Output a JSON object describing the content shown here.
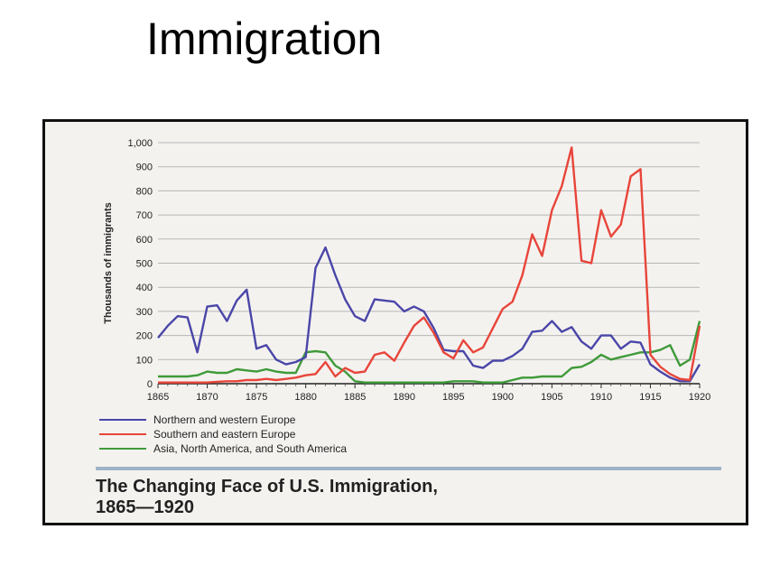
{
  "slide": {
    "title": "Immigration"
  },
  "chart_data": {
    "type": "line",
    "ylabel": "Thousands of immigrants",
    "xlabel": "",
    "ylim": [
      0,
      1000
    ],
    "xlim": [
      1865,
      1920
    ],
    "y_ticks": [
      "0",
      "100",
      "200",
      "300",
      "400",
      "500",
      "600",
      "700",
      "800",
      "900",
      "1,000"
    ],
    "x_ticks": [
      "1865",
      "1870",
      "1875",
      "1880",
      "1885",
      "1890",
      "1895",
      "1900",
      "1905",
      "1910",
      "1915",
      "1920"
    ],
    "grid": true,
    "legend_position": "bottom-left",
    "series": [
      {
        "name": "Northern and western Europe",
        "color": "#4a46a8",
        "x": [
          1865,
          1866,
          1867,
          1868,
          1869,
          1870,
          1871,
          1872,
          1873,
          1874,
          1875,
          1876,
          1877,
          1878,
          1879,
          1880,
          1881,
          1882,
          1883,
          1884,
          1885,
          1886,
          1887,
          1888,
          1889,
          1890,
          1891,
          1892,
          1893,
          1894,
          1895,
          1896,
          1897,
          1898,
          1899,
          1900,
          1901,
          1902,
          1903,
          1904,
          1905,
          1906,
          1907,
          1908,
          1909,
          1910,
          1911,
          1912,
          1913,
          1914,
          1915,
          1916,
          1917,
          1918,
          1919,
          1920
        ],
        "y": [
          190,
          240,
          280,
          275,
          130,
          320,
          325,
          260,
          345,
          390,
          145,
          160,
          100,
          80,
          90,
          110,
          480,
          565,
          450,
          350,
          280,
          260,
          350,
          345,
          340,
          300,
          320,
          300,
          230,
          140,
          135,
          135,
          75,
          65,
          95,
          95,
          115,
          145,
          215,
          220,
          260,
          215,
          235,
          175,
          145,
          200,
          200,
          145,
          175,
          170,
          80,
          50,
          25,
          10,
          10,
          80
        ]
      },
      {
        "name": "Southern and eastern Europe",
        "color": "#e8453a",
        "x": [
          1865,
          1866,
          1867,
          1868,
          1869,
          1870,
          1871,
          1872,
          1873,
          1874,
          1875,
          1876,
          1877,
          1878,
          1879,
          1880,
          1881,
          1882,
          1883,
          1884,
          1885,
          1886,
          1887,
          1888,
          1889,
          1890,
          1891,
          1892,
          1893,
          1894,
          1895,
          1896,
          1897,
          1898,
          1899,
          1900,
          1901,
          1902,
          1903,
          1904,
          1905,
          1906,
          1907,
          1908,
          1909,
          1910,
          1911,
          1912,
          1913,
          1914,
          1915,
          1916,
          1917,
          1918,
          1919,
          1920
        ],
        "y": [
          5,
          5,
          5,
          5,
          5,
          5,
          8,
          10,
          10,
          15,
          15,
          20,
          15,
          20,
          25,
          35,
          40,
          90,
          30,
          65,
          45,
          50,
          120,
          130,
          95,
          170,
          240,
          275,
          210,
          130,
          105,
          180,
          130,
          150,
          230,
          310,
          340,
          450,
          620,
          530,
          720,
          820,
          980,
          510,
          500,
          720,
          610,
          660,
          860,
          890,
          120,
          70,
          40,
          20,
          15,
          240
        ]
      },
      {
        "name": "Asia, North America, and South America",
        "color": "#3f9a3a",
        "x": [
          1865,
          1866,
          1867,
          1868,
          1869,
          1870,
          1871,
          1872,
          1873,
          1874,
          1875,
          1876,
          1877,
          1878,
          1879,
          1880,
          1881,
          1882,
          1883,
          1884,
          1885,
          1886,
          1887,
          1888,
          1889,
          1890,
          1891,
          1892,
          1893,
          1894,
          1895,
          1896,
          1897,
          1898,
          1899,
          1900,
          1901,
          1902,
          1903,
          1904,
          1905,
          1906,
          1907,
          1908,
          1909,
          1910,
          1911,
          1912,
          1913,
          1914,
          1915,
          1916,
          1917,
          1918,
          1919,
          1920
        ],
        "y": [
          30,
          30,
          30,
          30,
          35,
          50,
          45,
          45,
          60,
          55,
          50,
          60,
          50,
          45,
          45,
          130,
          135,
          130,
          75,
          50,
          10,
          5,
          5,
          5,
          5,
          5,
          5,
          5,
          5,
          5,
          10,
          10,
          10,
          5,
          5,
          5,
          15,
          25,
          25,
          30,
          30,
          30,
          65,
          70,
          90,
          120,
          100,
          110,
          120,
          130,
          130,
          140,
          160,
          75,
          100,
          260
        ]
      }
    ],
    "title": "The Changing Face of U.S. Immigration, 1865—1920"
  },
  "caption": {
    "line1": "The Changing Face of U.S. Immigration,",
    "line2": "1865—1920"
  }
}
